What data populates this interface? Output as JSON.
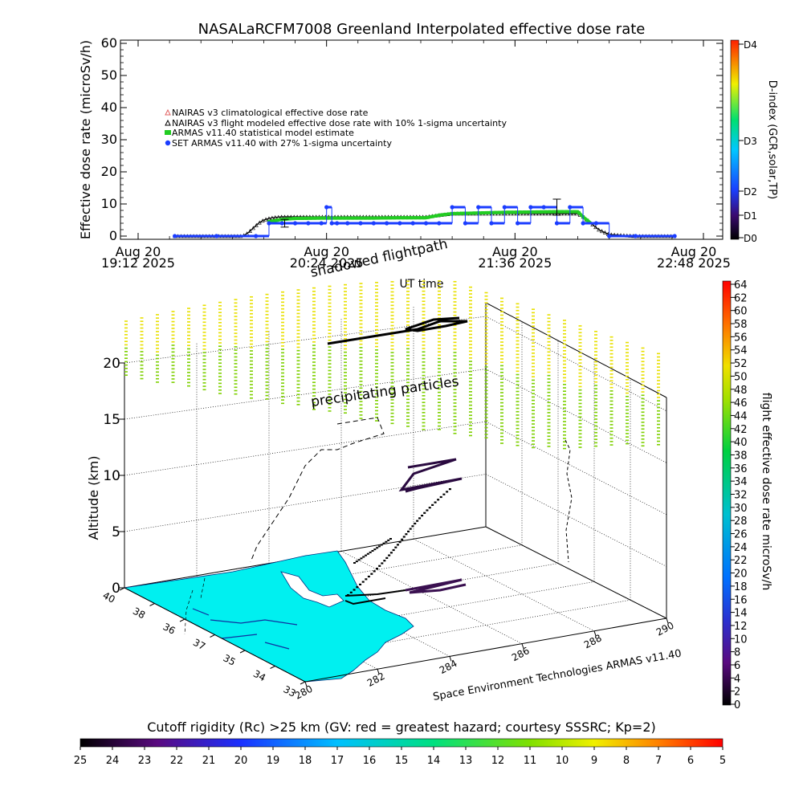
{
  "chart_data": [
    {
      "type": "line",
      "title": "NASALaRCFM7008  Greenland Interpolated effective dose rate",
      "xlabel": "UT time",
      "ylabel": "Effective dose rate (microSv/h)",
      "ylim": [
        0,
        60
      ],
      "yticks": [
        0,
        10,
        20,
        30,
        40,
        50,
        60
      ],
      "x_ticks": [
        {
          "date": "Aug 20",
          "time": "19:12 2025",
          "t": 0
        },
        {
          "date": "Aug 20",
          "time": "20:24 2025",
          "t": 72
        },
        {
          "date": "Aug 20",
          "time": "21:36 2025",
          "t": 144
        },
        {
          "date": "Aug 20",
          "time": "22:48 2025",
          "t": 216
        }
      ],
      "xlim_minutes": [
        0,
        216
      ],
      "legend_position": "upper-left",
      "series": [
        {
          "name": "NAIRAS v3 climatological effective dose rate",
          "marker": "triangle",
          "color": "#e06060",
          "x": [],
          "y": []
        },
        {
          "name": "NAIRAS v3 flight modeled effective dose rate with 10% 1-sigma uncertainty",
          "marker": "triangle",
          "color": "#000000",
          "x": [
            14,
            30,
            40,
            42,
            44,
            46,
            48,
            50,
            52,
            55,
            60,
            70,
            80,
            90,
            100,
            110,
            115,
            120,
            130,
            140,
            150,
            160,
            168,
            170,
            173,
            176,
            180,
            190,
            200,
            205
          ],
          "y": [
            0,
            0,
            0,
            1,
            2.5,
            4,
            5,
            5.5,
            5.8,
            6,
            6,
            6,
            6,
            6,
            6,
            6,
            6.5,
            7,
            7,
            7,
            7,
            7,
            7,
            6,
            4,
            2,
            0.5,
            0,
            0,
            0
          ]
        },
        {
          "name": "ARMAS v11.40 statistical model estimate",
          "marker": "square",
          "color": "#22cc22",
          "x": [
            50,
            55,
            60,
            70,
            80,
            90,
            100,
            110,
            115,
            120,
            130,
            140,
            150,
            160,
            168,
            170,
            173
          ],
          "y": [
            4.5,
            5.2,
            5.5,
            5.6,
            5.6,
            5.6,
            5.7,
            5.7,
            6.5,
            7,
            7.2,
            7.4,
            7.5,
            7.6,
            7.6,
            6,
            4
          ]
        },
        {
          "name": "SET ARMAS v11.40 with 27% 1-sigma uncertainty",
          "marker": "circle",
          "color": "#1a3cff",
          "x": [
            14,
            30,
            45,
            50,
            55,
            60,
            65,
            70,
            72,
            74,
            76,
            80,
            85,
            90,
            95,
            100,
            105,
            110,
            115,
            120,
            125,
            130,
            135,
            140,
            145,
            150,
            155,
            160,
            165,
            170,
            175,
            180,
            190,
            205
          ],
          "y": [
            0,
            0,
            0,
            4,
            4,
            4,
            4,
            4,
            9,
            4,
            4,
            4,
            4,
            4,
            4,
            4,
            4,
            4,
            4,
            9,
            4,
            9,
            4,
            9,
            4,
            9,
            9,
            4,
            9,
            4,
            4,
            0,
            0,
            0
          ]
        }
      ],
      "errorbars": [
        {
          "t": 56,
          "y": 4,
          "err": 1.2
        },
        {
          "t": 160,
          "y": 9,
          "err": 2.5
        }
      ],
      "colorbar": {
        "label": "D-index (GCR,solar,TP)",
        "ticks": [
          "D0",
          "D1",
          "D2",
          "D3",
          "D4"
        ]
      }
    },
    {
      "type": "scatter",
      "subtype": "3d",
      "zlabel": "Altitude (km)",
      "zlim": [
        0,
        20
      ],
      "zticks": [
        0,
        5,
        10,
        15,
        20
      ],
      "lat_ticks": [
        40,
        38,
        36,
        37,
        35,
        34,
        33
      ],
      "lon_ticks": [
        280,
        282,
        284,
        286,
        288,
        290
      ],
      "annotations": [
        "shadowed flightpath",
        "precipitating particles"
      ],
      "credit": "Space Environment Technologies ARMAS v11.40",
      "colorbar": {
        "label": "flight effective dose rate microSv/h",
        "min": 0,
        "max": 64,
        "ticks": [
          0,
          2,
          4,
          6,
          8,
          10,
          12,
          14,
          16,
          18,
          20,
          22,
          24,
          26,
          28,
          30,
          32,
          34,
          36,
          38,
          40,
          42,
          44,
          46,
          48,
          50,
          52,
          54,
          56,
          58,
          60,
          62,
          64
        ]
      }
    },
    {
      "type": "heatmap",
      "title": "Cutoff rigidity (Rc) >25 km (GV: red = greatest hazard; courtesy SSSRC; Kp=2)",
      "colorbar_ticks": [
        25,
        24,
        23,
        22,
        21,
        20,
        19,
        18,
        17,
        16,
        15,
        14,
        13,
        12,
        11,
        10,
        9,
        8,
        7,
        6,
        5
      ]
    }
  ],
  "colors": {
    "nairas_clim": "#e06060",
    "nairas_flight": "#000000",
    "armas_model": "#22cc22",
    "set_armas": "#1a3cff",
    "land": "#00f0f0",
    "particles_yellow": "#e8e000",
    "particles_green": "#7ed000"
  }
}
